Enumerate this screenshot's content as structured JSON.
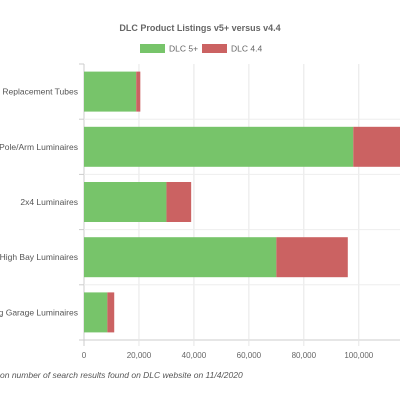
{
  "chart_data": {
    "type": "bar",
    "orientation": "horizontal",
    "stacked": true,
    "title": "DLC Product Listings v5+ versus v4.4",
    "categories": [
      "Linear Replacement Tubes",
      "Outdoor Pole/Arm Luminaires",
      "2x4 Luminaires",
      "High Bay Luminaires",
      "Parking Garage Luminaires"
    ],
    "category_labels_visible": [
      "ar Replacement Tubes",
      "r Pole/Arm Luminaires",
      "2x4 Luminaires",
      "High Bay Luminaires",
      "ng Garage Luminaires"
    ],
    "series": [
      {
        "name": "DLC 5+",
        "color": "#77c46a",
        "values": [
          19000,
          98000,
          30000,
          70000,
          8500
        ]
      },
      {
        "name": "DLC 4.4",
        "color": "#cb6262",
        "values": [
          1500,
          17000,
          9000,
          26000,
          2500
        ]
      }
    ],
    "xlim": [
      0,
      115000
    ],
    "xticks": [
      0,
      20000,
      40000,
      60000,
      80000,
      100000
    ],
    "xtick_labels": [
      "0",
      "20,000",
      "40,000",
      "60,000",
      "80,000",
      "100,000"
    ],
    "grid": true,
    "legend_position": "top",
    "caption": "on number of search results found on DLC website on 11/4/2020"
  }
}
